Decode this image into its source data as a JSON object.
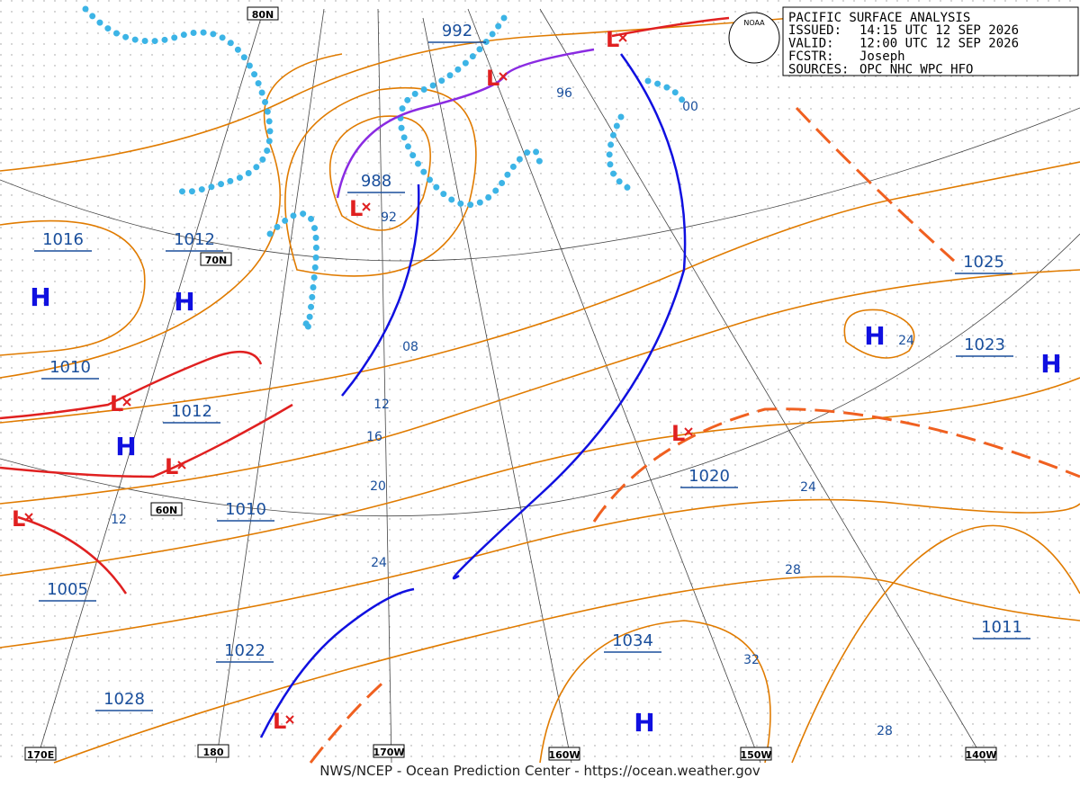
{
  "info_box": {
    "title": "PACIFIC SURFACE ANALYSIS",
    "rows": [
      {
        "label": "ISSUED:",
        "value": "14:15 UTC 12 SEP 2026"
      },
      {
        "label": "VALID:",
        "value": "12:00 UTC 12 SEP 2026"
      },
      {
        "label": "FCSTR:",
        "value": "Joseph"
      },
      {
        "label": "SOURCES:",
        "value": "OPC NHC WPC HFO"
      }
    ]
  },
  "logo": "NOAA",
  "center_labels": [
    "992",
    "988",
    "1016",
    "1012",
    "1010",
    "1012",
    "1010",
    "1005",
    "1022",
    "1028",
    "1034",
    "1020",
    "1025",
    "1023",
    "1011"
  ],
  "isobar_labels": [
    "96",
    "00",
    "92",
    "08",
    "12",
    "16",
    "20",
    "24",
    "12",
    "24",
    "24",
    "28",
    "32",
    "28"
  ],
  "highs": [
    "H",
    "H",
    "H",
    "H",
    "H",
    "H"
  ],
  "lows": [
    "L",
    "L",
    "L",
    "L",
    "L",
    "L",
    "L",
    "L"
  ],
  "grid_labels": [
    "80N",
    "70N",
    "60N",
    "170E",
    "180",
    "170W",
    "160W",
    "150W",
    "140W"
  ],
  "footer": "NWS/NCEP - Ocean Prediction Center - https://ocean.weather.gov"
}
